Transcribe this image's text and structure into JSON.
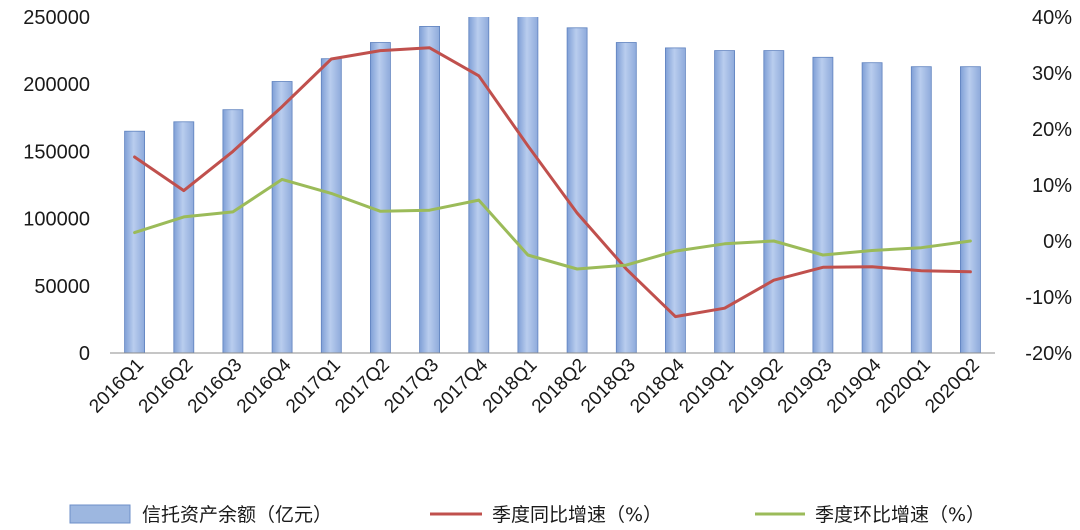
{
  "chart_data": {
    "type": "bar",
    "categories": [
      "2016Q1",
      "2016Q2",
      "2016Q3",
      "2016Q4",
      "2017Q1",
      "2017Q2",
      "2017Q3",
      "2017Q4",
      "2018Q1",
      "2018Q2",
      "2018Q3",
      "2018Q4",
      "2019Q1",
      "2019Q2",
      "2019Q3",
      "2019Q4",
      "2020Q1",
      "2020Q2"
    ],
    "series": [
      {
        "name": "信托资产余额（亿元）",
        "type": "bar",
        "axis": "left",
        "color": "#9db7e0",
        "values": [
          165000,
          172000,
          181000,
          202000,
          219000,
          231000,
          243000,
          262000,
          251000,
          242000,
          231000,
          227000,
          225000,
          225000,
          220000,
          216000,
          213000,
          213000
        ]
      },
      {
        "name": "季度同比增速（%）",
        "type": "line",
        "axis": "right",
        "color": "#c0504d",
        "values": [
          15,
          9,
          16,
          24,
          32.5,
          34,
          34.5,
          29.5,
          17,
          5,
          -5,
          -13.5,
          -12,
          -7,
          -4.7,
          -4.6,
          -5.3,
          -5.5
        ]
      },
      {
        "name": "季度环比增速（%）",
        "type": "line",
        "axis": "right",
        "color": "#9bbb59",
        "values": [
          1.5,
          4.3,
          5.2,
          11,
          8.5,
          5.3,
          5.5,
          7.3,
          -2.5,
          -5,
          -4.3,
          -1.8,
          -0.5,
          0,
          -2.5,
          -1.7,
          -1.2,
          0
        ]
      }
    ],
    "y_left": {
      "range": [
        0,
        250000
      ],
      "ticks": [
        "0",
        "50000",
        "100000",
        "150000",
        "200000",
        "250000"
      ],
      "tick_values": [
        0,
        50000,
        100000,
        150000,
        200000,
        250000
      ]
    },
    "y_right": {
      "range": [
        -20,
        40
      ],
      "ticks": [
        "-20%",
        "-10%",
        "0%",
        "10%",
        "20%",
        "30%",
        "40%"
      ],
      "tick_values": [
        -20,
        -10,
        0,
        10,
        20,
        30,
        40
      ]
    },
    "title": "",
    "xlabel": "",
    "ylabel": "",
    "grid": false,
    "legend_position": "bottom"
  }
}
